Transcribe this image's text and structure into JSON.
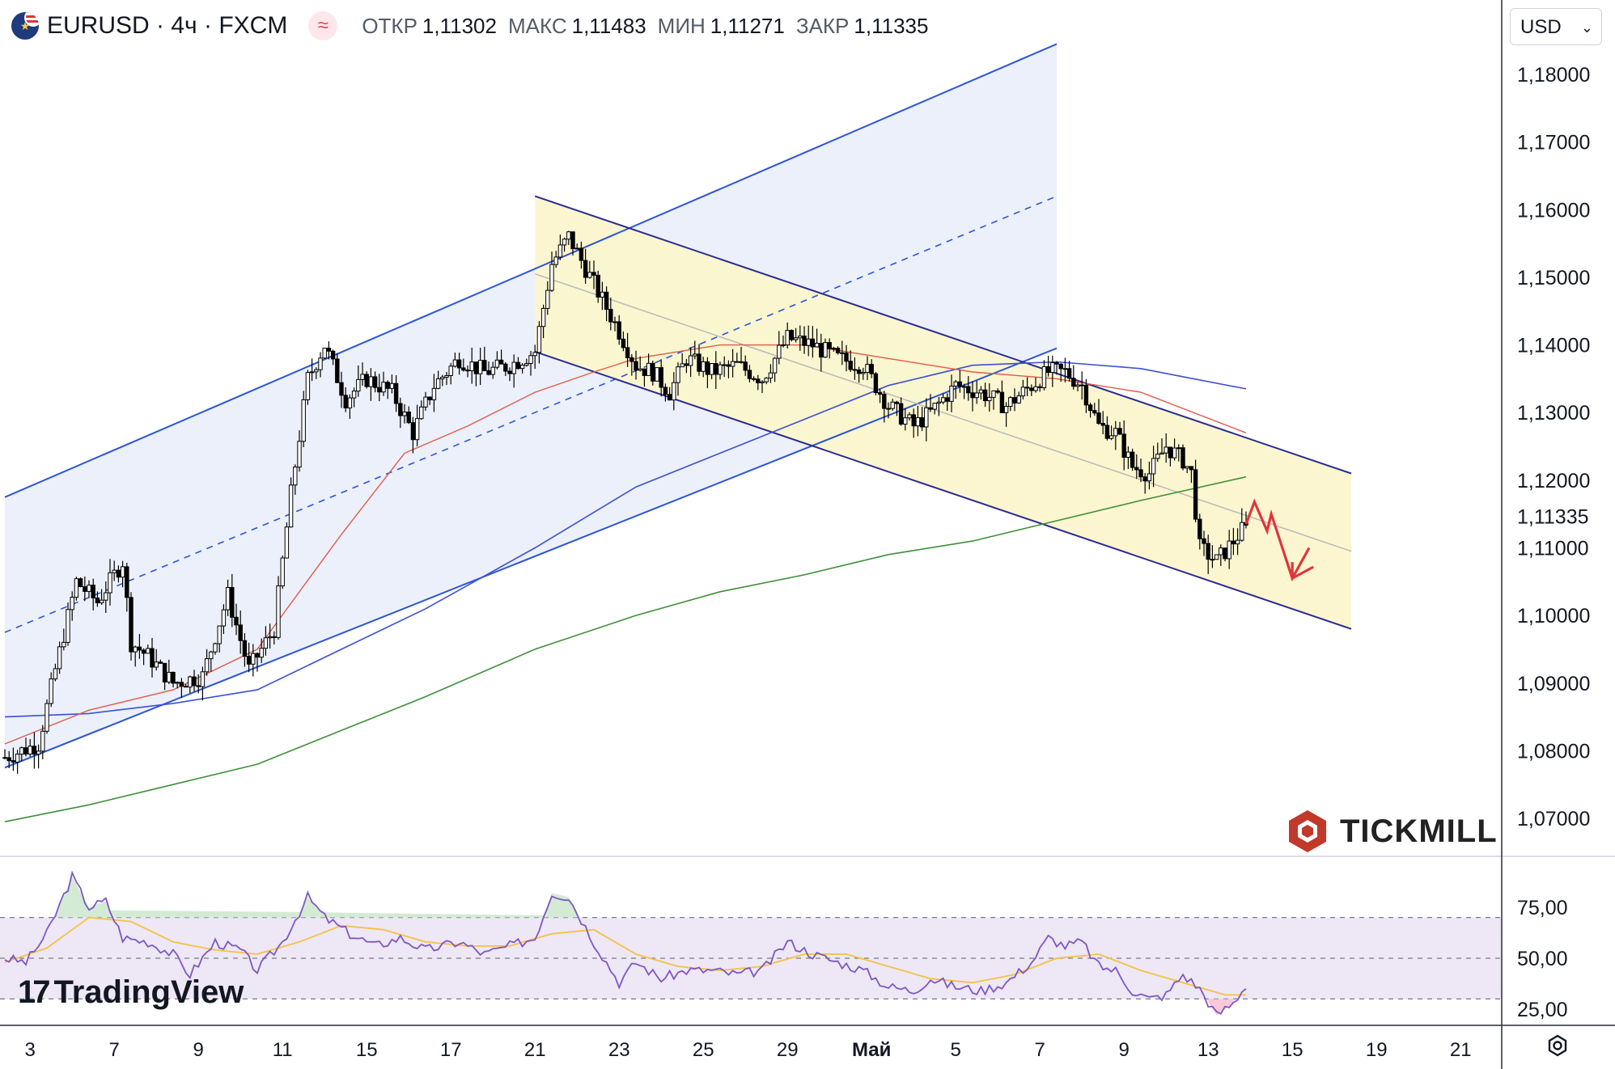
{
  "header": {
    "symbol": "EURUSD · 4ч · FXCM",
    "indicator_icon": "wave-icon",
    "ohlc": [
      {
        "label": "ОТКР",
        "value": "1,11302"
      },
      {
        "label": "МАКС",
        "value": "1,11483"
      },
      {
        "label": "МИН",
        "value": "1,11271"
      },
      {
        "label": "ЗАКР",
        "value": "1,11335"
      }
    ]
  },
  "currency": {
    "label": "USD",
    "icon": "chevron-down-icon"
  },
  "branding": {
    "tickmill": "TICKMILL",
    "tradingview": "TradingView"
  },
  "settings_icon": "gear-icon",
  "colors": {
    "up_candle": "#ffffff",
    "down_candle": "#000000",
    "ma_fast": "#e05b4b",
    "ma_mid": "#3d4fd6",
    "ma_slow": "#3f8f3a",
    "rising_channel": "#2b55d9",
    "falling_channel": "#2a2a8f",
    "channel_fill_blue": "#e9eefa",
    "channel_fill_yellow": "#fbf5cc",
    "forecast_arrow": "#e0353e",
    "rsi_line": "#7e57c2",
    "rsi_ma": "#f5c242",
    "rsi_band": "#ede7f6"
  },
  "chart_data": [
    {
      "type": "candlestick",
      "title": "EURUSD · 4ч · FXCM",
      "ylim": [
        1.064,
        1.19
      ],
      "y_ticks": [
        "1,18000",
        "1,17000",
        "1,16000",
        "1,15000",
        "1,14000",
        "1,13000",
        "1,12000",
        "1,11000",
        "1,10000",
        "1,09000",
        "1,08000",
        "1,07000"
      ],
      "y_tick_values": [
        1.18,
        1.17,
        1.16,
        1.15,
        1.14,
        1.13,
        1.12,
        1.11,
        1.1,
        1.09,
        1.08,
        1.07
      ],
      "last_price": "1,11335",
      "last_price_value": 1.11335,
      "x_ticks": [
        "3",
        "7",
        "9",
        "11",
        "15",
        "17",
        "21",
        "23",
        "25",
        "29",
        "Май",
        "5",
        "7",
        "9",
        "13",
        "15",
        "19",
        "21"
      ],
      "x_tick_index": [
        6,
        26,
        46,
        66,
        86,
        106,
        126,
        146,
        166,
        186,
        206,
        226,
        246,
        266,
        286,
        306,
        326,
        346
      ],
      "candles_count": 295,
      "price_anchors": [
        [
          0,
          1.079
        ],
        [
          8,
          1.081
        ],
        [
          12,
          1.092
        ],
        [
          17,
          1.105
        ],
        [
          22,
          1.102
        ],
        [
          28,
          1.108
        ],
        [
          30,
          1.096
        ],
        [
          34,
          1.094
        ],
        [
          40,
          1.09
        ],
        [
          47,
          1.091
        ],
        [
          53,
          1.103
        ],
        [
          58,
          1.092
        ],
        [
          64,
          1.098
        ],
        [
          68,
          1.118
        ],
        [
          72,
          1.135
        ],
        [
          76,
          1.14
        ],
        [
          81,
          1.132
        ],
        [
          86,
          1.135
        ],
        [
          92,
          1.133
        ],
        [
          97,
          1.127
        ],
        [
          102,
          1.134
        ],
        [
          108,
          1.138
        ],
        [
          114,
          1.136
        ],
        [
          120,
          1.137
        ],
        [
          126,
          1.139
        ],
        [
          130,
          1.152
        ],
        [
          134,
          1.156
        ],
        [
          140,
          1.149
        ],
        [
          146,
          1.142
        ],
        [
          150,
          1.137
        ],
        [
          154,
          1.136
        ],
        [
          158,
          1.133
        ],
        [
          162,
          1.138
        ],
        [
          168,
          1.136
        ],
        [
          174,
          1.137
        ],
        [
          180,
          1.135
        ],
        [
          186,
          1.141
        ],
        [
          192,
          1.14
        ],
        [
          198,
          1.138
        ],
        [
          204,
          1.137
        ],
        [
          210,
          1.131
        ],
        [
          216,
          1.128
        ],
        [
          220,
          1.13
        ],
        [
          226,
          1.134
        ],
        [
          232,
          1.133
        ],
        [
          238,
          1.131
        ],
        [
          244,
          1.134
        ],
        [
          248,
          1.136
        ],
        [
          252,
          1.136
        ],
        [
          256,
          1.134
        ],
        [
          260,
          1.128
        ],
        [
          264,
          1.127
        ],
        [
          268,
          1.122
        ],
        [
          272,
          1.121
        ],
        [
          276,
          1.125
        ],
        [
          280,
          1.123
        ],
        [
          282,
          1.121
        ],
        [
          284,
          1.11
        ],
        [
          288,
          1.108
        ],
        [
          292,
          1.111
        ],
        [
          295,
          1.11335
        ]
      ],
      "rising_channel": {
        "upper": [
          [
            0,
            1.1175
          ],
          [
            250,
            1.1845
          ]
        ],
        "lower": [
          [
            0,
            1.0775
          ],
          [
            250,
            1.1395
          ]
        ],
        "mid": [
          [
            0,
            1.0975
          ],
          [
            250,
            1.162
          ]
        ],
        "x_end": 250
      },
      "falling_channel": {
        "upper": [
          [
            126,
            1.162
          ],
          [
            320,
            1.121
          ]
        ],
        "lower": [
          [
            126,
            1.139
          ],
          [
            320,
            1.098
          ]
        ],
        "x_start": 126,
        "x_end": 320
      },
      "ma_fast": [
        [
          0,
          1.081
        ],
        [
          20,
          1.086
        ],
        [
          40,
          1.089
        ],
        [
          60,
          1.095
        ],
        [
          80,
          1.112
        ],
        [
          95,
          1.124
        ],
        [
          110,
          1.128
        ],
        [
          126,
          1.133
        ],
        [
          140,
          1.136
        ],
        [
          150,
          1.138
        ],
        [
          170,
          1.14
        ],
        [
          190,
          1.14
        ],
        [
          210,
          1.138
        ],
        [
          230,
          1.136
        ],
        [
          250,
          1.135
        ],
        [
          270,
          1.133
        ],
        [
          295,
          1.127
        ]
      ],
      "ma_mid": [
        [
          0,
          1.085
        ],
        [
          20,
          1.0855
        ],
        [
          40,
          1.087
        ],
        [
          60,
          1.089
        ],
        [
          80,
          1.095
        ],
        [
          100,
          1.101
        ],
        [
          126,
          1.11
        ],
        [
          150,
          1.119
        ],
        [
          170,
          1.124
        ],
        [
          190,
          1.129
        ],
        [
          210,
          1.134
        ],
        [
          230,
          1.137
        ],
        [
          250,
          1.1375
        ],
        [
          270,
          1.1365
        ],
        [
          295,
          1.1335
        ]
      ],
      "ma_slow": [
        [
          0,
          1.0695
        ],
        [
          20,
          1.072
        ],
        [
          40,
          1.075
        ],
        [
          60,
          1.078
        ],
        [
          80,
          1.083
        ],
        [
          100,
          1.088
        ],
        [
          126,
          1.095
        ],
        [
          150,
          1.1
        ],
        [
          170,
          1.1035
        ],
        [
          190,
          1.106
        ],
        [
          210,
          1.109
        ],
        [
          230,
          1.111
        ],
        [
          250,
          1.114
        ],
        [
          270,
          1.117
        ],
        [
          295,
          1.1205
        ]
      ],
      "forecast_arrow": [
        [
          295,
          1.1135
        ],
        [
          297,
          1.1168
        ],
        [
          300,
          1.1125
        ],
        [
          301,
          1.115
        ],
        [
          306,
          1.1055
        ],
        [
          310,
          1.11
        ]
      ]
    },
    {
      "type": "line",
      "title": "RSI",
      "ylim": [
        10,
        100
      ],
      "y_ticks": [
        "75,00",
        "50,00",
        "25,00"
      ],
      "y_tick_values": [
        75,
        50,
        25
      ],
      "band": [
        30,
        70
      ],
      "rsi_anchors": [
        [
          0,
          50
        ],
        [
          5,
          48
        ],
        [
          10,
          62
        ],
        [
          16,
          90
        ],
        [
          20,
          75
        ],
        [
          24,
          78
        ],
        [
          28,
          60
        ],
        [
          34,
          58
        ],
        [
          40,
          52
        ],
        [
          44,
          42
        ],
        [
          50,
          58
        ],
        [
          56,
          54
        ],
        [
          60,
          44
        ],
        [
          66,
          58
        ],
        [
          72,
          80
        ],
        [
          76,
          70
        ],
        [
          82,
          62
        ],
        [
          88,
          56
        ],
        [
          94,
          60
        ],
        [
          100,
          54
        ],
        [
          108,
          58
        ],
        [
          114,
          52
        ],
        [
          120,
          56
        ],
        [
          126,
          60
        ],
        [
          130,
          82
        ],
        [
          134,
          80
        ],
        [
          140,
          58
        ],
        [
          146,
          38
        ],
        [
          150,
          48
        ],
        [
          156,
          40
        ],
        [
          162,
          44
        ],
        [
          168,
          44
        ],
        [
          174,
          42
        ],
        [
          180,
          44
        ],
        [
          186,
          58
        ],
        [
          192,
          52
        ],
        [
          198,
          48
        ],
        [
          204,
          44
        ],
        [
          210,
          36
        ],
        [
          216,
          34
        ],
        [
          220,
          40
        ],
        [
          226,
          36
        ],
        [
          232,
          34
        ],
        [
          238,
          38
        ],
        [
          244,
          48
        ],
        [
          248,
          60
        ],
        [
          252,
          56
        ],
        [
          256,
          58
        ],
        [
          260,
          46
        ],
        [
          264,
          44
        ],
        [
          268,
          34
        ],
        [
          272,
          30
        ],
        [
          276,
          32
        ],
        [
          280,
          42
        ],
        [
          284,
          35
        ],
        [
          288,
          22
        ],
        [
          292,
          28
        ],
        [
          295,
          37
        ]
      ],
      "rsi_ma_anchors": [
        [
          0,
          48
        ],
        [
          10,
          55
        ],
        [
          20,
          70
        ],
        [
          30,
          68
        ],
        [
          40,
          58
        ],
        [
          50,
          54
        ],
        [
          60,
          52
        ],
        [
          70,
          58
        ],
        [
          80,
          66
        ],
        [
          90,
          64
        ],
        [
          100,
          58
        ],
        [
          110,
          56
        ],
        [
          120,
          56
        ],
        [
          130,
          62
        ],
        [
          140,
          64
        ],
        [
          150,
          52
        ],
        [
          160,
          46
        ],
        [
          170,
          44
        ],
        [
          180,
          46
        ],
        [
          190,
          52
        ],
        [
          200,
          52
        ],
        [
          210,
          46
        ],
        [
          220,
          40
        ],
        [
          230,
          38
        ],
        [
          240,
          42
        ],
        [
          250,
          50
        ],
        [
          260,
          52
        ],
        [
          270,
          44
        ],
        [
          280,
          38
        ],
        [
          290,
          32
        ],
        [
          295,
          32
        ]
      ]
    }
  ]
}
